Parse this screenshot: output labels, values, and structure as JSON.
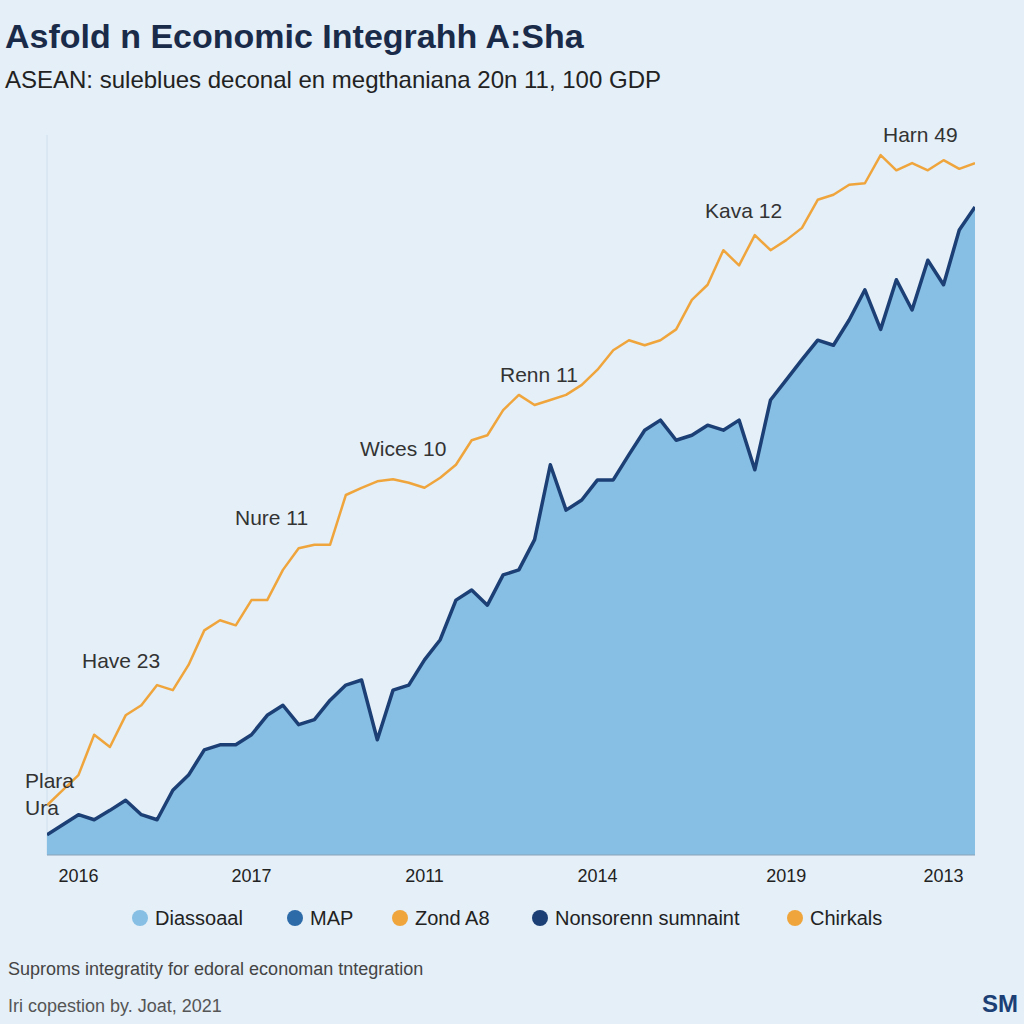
{
  "chart_data": {
    "type": "line",
    "title": "Asfold n Economic Integrahh A:Sha",
    "subtitle": "ASEAN: suleblues deconal en megthaniana 20n 11, 100 GDP",
    "note": "Suproms integratity for edoral economan tntegration",
    "source": "Iri copestion by. Joat, 2021",
    "logo": "SM",
    "annotations": [
      "Plara",
      "Ura",
      "Have 23",
      "Nure 11",
      "Wices 10",
      "Renn 11",
      "Kava 12",
      "Harn 49"
    ],
    "categories": [
      null,
      null,
      "2016",
      null,
      null,
      null,
      null,
      null,
      null,
      null,
      null,
      null,
      null,
      "2017",
      null,
      null,
      null,
      null,
      null,
      null,
      null,
      null,
      null,
      null,
      "2011",
      null,
      null,
      null,
      null,
      null,
      null,
      null,
      null,
      null,
      null,
      "2014",
      null,
      null,
      null,
      null,
      null,
      null,
      null,
      null,
      null,
      null,
      null,
      "2019",
      null,
      null,
      null,
      null,
      null,
      null,
      null,
      null,
      null,
      "2013",
      null,
      null
    ],
    "series": [
      {
        "name": "Diassoaal",
        "type": "area",
        "color": "#86bfe3",
        "values": [
          2.8,
          4.2,
          5.6,
          4.9,
          6.2,
          7.6,
          5.6,
          4.9,
          9,
          11.1,
          14.6,
          15.3,
          15.3,
          16.7,
          19.4,
          20.8,
          18.1,
          18.8,
          21.5,
          23.6,
          24.3,
          16,
          22.9,
          23.6,
          27.1,
          29.9,
          35.4,
          36.8,
          34.7,
          38.9,
          39.6,
          43.8,
          54.2,
          47.9,
          49.3,
          52.1,
          52.1,
          55.6,
          59,
          60.4,
          57.6,
          58.3,
          59.7,
          59,
          60.4,
          53.5,
          63.2,
          66,
          68.8,
          71.5,
          70.8,
          74.3,
          78.5,
          73,
          79.9,
          75.7,
          82.6,
          79.2,
          86.8,
          90
        ]
      },
      {
        "name": "MAP",
        "type": "line",
        "color": "#2d6aa8",
        "values": [
          null,
          null,
          null,
          null,
          null,
          null,
          null,
          null,
          null,
          null,
          null,
          null,
          null,
          null,
          null,
          null,
          null,
          null,
          null,
          null,
          null,
          null,
          null,
          null,
          null,
          null,
          null,
          null,
          null,
          null,
          null,
          null,
          null,
          null,
          null,
          null,
          null,
          null,
          null,
          null,
          null,
          null,
          null,
          null,
          null,
          null,
          null,
          null,
          null,
          null,
          null,
          null,
          null,
          null,
          null,
          null,
          null,
          null,
          null,
          null
        ]
      },
      {
        "name": "Zond A8",
        "type": "line",
        "color": "#f0a53c",
        "values": [
          6.9,
          9,
          11.1,
          16.7,
          15,
          19.4,
          20.8,
          23.6,
          22.9,
          26.4,
          31.2,
          32.6,
          31.9,
          35.4,
          35.4,
          39.6,
          42.6,
          43.1,
          43.1,
          50,
          51,
          51.9,
          52.2,
          51.7,
          51,
          52.4,
          54.2,
          57.6,
          58.3,
          61.8,
          63.9,
          62.5,
          63.2,
          63.9,
          65.3,
          67.4,
          70.1,
          71.5,
          70.8,
          71.5,
          73,
          77.1,
          79.2,
          84,
          81.9,
          86.1,
          84,
          85.4,
          87.1,
          91,
          91.7,
          93.1,
          93.3,
          97.2,
          95.1,
          96.1,
          95.1,
          96.5,
          95.3,
          96.1
        ]
      },
      {
        "name": "Nonsorenn sumnaint",
        "type": "line",
        "color": "#1c3f75",
        "values": [
          2.8,
          4.2,
          5.6,
          4.9,
          6.2,
          7.6,
          5.6,
          4.9,
          9,
          11.1,
          14.6,
          15.3,
          15.3,
          16.7,
          19.4,
          20.8,
          18.1,
          18.8,
          21.5,
          23.6,
          24.3,
          16,
          22.9,
          23.6,
          27.1,
          29.9,
          35.4,
          36.8,
          34.7,
          38.9,
          39.6,
          43.8,
          54.2,
          47.9,
          49.3,
          52.1,
          52.1,
          55.6,
          59,
          60.4,
          57.6,
          58.3,
          59.7,
          59,
          60.4,
          53.5,
          63.2,
          66,
          68.8,
          71.5,
          70.8,
          74.3,
          78.5,
          73,
          79.9,
          75.7,
          82.6,
          79.2,
          86.8,
          90
        ]
      },
      {
        "name": "Chirkals",
        "type": "line",
        "color": "#f0a53c",
        "values": [
          null,
          null,
          null,
          null,
          null,
          null,
          null,
          null,
          null,
          null,
          null,
          null,
          null,
          null,
          null,
          null,
          null,
          null,
          null,
          null,
          null,
          null,
          null,
          null,
          null,
          null,
          null,
          null,
          null,
          null,
          null,
          null,
          null,
          null,
          null,
          null,
          null,
          null,
          null,
          null,
          null,
          null,
          null,
          null,
          null,
          null,
          null,
          null,
          null,
          null,
          null,
          null,
          null,
          null,
          null,
          null,
          null,
          null,
          null,
          null
        ]
      }
    ],
    "ylim": [
      0,
      100
    ],
    "tick_labels": "x",
    "grid": false,
    "legend": "bottom"
  }
}
